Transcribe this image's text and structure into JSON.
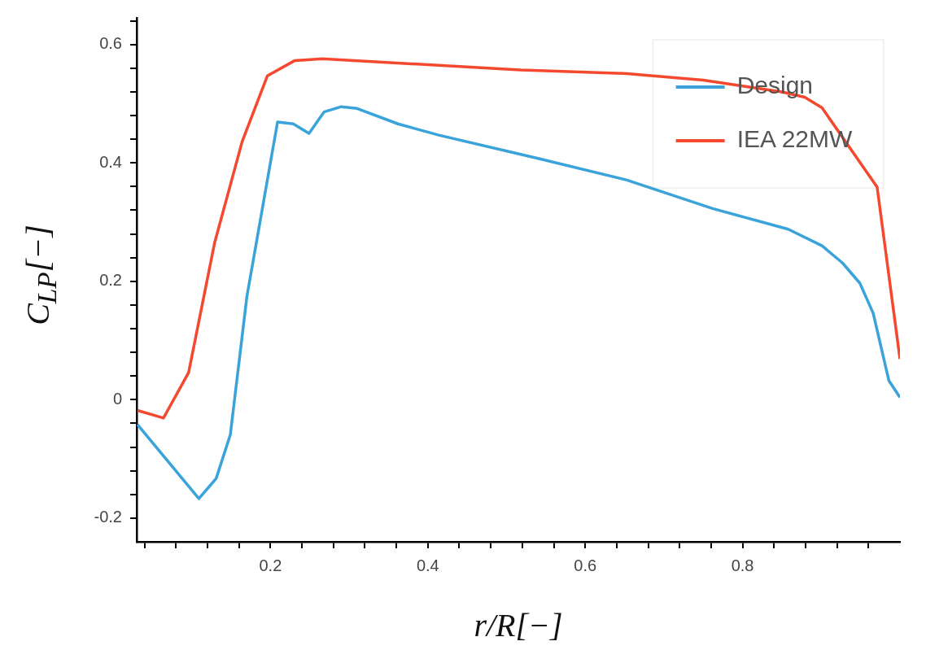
{
  "chart_data": {
    "type": "line",
    "xlabel": "r/R[−]",
    "ylabel": "C$_{LP}$[−]",
    "xlim": [
      0.03,
      1.0
    ],
    "xticks": [
      {
        "value": 0.04,
        "label": null
      },
      {
        "value": 0.08,
        "label": null
      },
      {
        "value": 0.12,
        "label": null
      },
      {
        "value": 0.16,
        "label": null
      },
      0.2,
      {
        "value": 0.24,
        "label": null
      },
      {
        "value": 0.28,
        "label": null
      },
      {
        "value": 0.32,
        "label": null
      },
      {
        "value": 0.36,
        "label": null
      },
      0.4,
      {
        "value": 0.44,
        "label": null
      },
      {
        "value": 0.48,
        "label": null
      },
      {
        "value": 0.52,
        "label": null
      },
      {
        "value": 0.56,
        "label": null
      },
      0.6,
      {
        "value": 0.64,
        "label": null
      },
      {
        "value": 0.68,
        "label": null
      },
      {
        "value": 0.72,
        "label": null
      },
      {
        "value": 0.76,
        "label": null
      },
      0.8,
      {
        "value": 0.84,
        "label": null
      },
      {
        "value": 0.88,
        "label": null
      },
      {
        "value": 0.92,
        "label": null
      },
      {
        "value": 0.96,
        "label": null
      }
    ],
    "ylim": [
      -0.24,
      0.645
    ],
    "yticks": [
      -0.2,
      {
        "value": -0.16,
        "label": null
      },
      {
        "value": -0.12,
        "label": null
      },
      {
        "value": -0.08,
        "label": null
      },
      {
        "value": -0.04,
        "label": null
      },
      0,
      {
        "value": 0.04,
        "label": null
      },
      {
        "value": 0.08,
        "label": null
      },
      {
        "value": 0.12,
        "label": null
      },
      {
        "value": 0.16,
        "label": null
      },
      0.2,
      {
        "value": 0.24,
        "label": null
      },
      {
        "value": 0.28,
        "label": null
      },
      {
        "value": 0.32,
        "label": null
      },
      {
        "value": 0.36,
        "label": null
      },
      0.4,
      {
        "value": 0.44,
        "label": null
      },
      {
        "value": 0.48,
        "label": null
      },
      {
        "value": 0.52,
        "label": null
      },
      {
        "value": 0.56,
        "label": null
      },
      0.6,
      {
        "value": 0.64,
        "label": null
      }
    ],
    "grid": false,
    "legend": "top right",
    "marker": "none",
    "line_style": "solid",
    "series": [
      {
        "name": "Design",
        "color": "#3aa3da",
        "x": [
          0.031,
          0.109,
          0.131,
          0.149,
          0.17,
          0.209,
          0.229,
          0.249,
          0.268,
          0.29,
          0.31,
          0.362,
          0.414,
          0.539,
          0.653,
          0.762,
          0.858,
          0.901,
          0.927,
          0.949,
          0.966,
          0.986,
          1.0
        ],
        "values": [
          -0.042,
          -0.167,
          -0.133,
          -0.059,
          0.174,
          0.469,
          0.466,
          0.45,
          0.486,
          0.495,
          0.492,
          0.466,
          0.447,
          0.408,
          0.371,
          0.323,
          0.288,
          0.26,
          0.231,
          0.197,
          0.146,
          0.032,
          0.004
        ]
      },
      {
        "name": "IEA 22MW",
        "color": "#f4492f",
        "x": [
          0.031,
          0.064,
          0.096,
          0.129,
          0.164,
          0.196,
          0.231,
          0.266,
          0.518,
          0.653,
          0.75,
          0.85,
          0.879,
          0.901,
          0.971,
          1.0
        ],
        "values": [
          -0.018,
          -0.031,
          0.046,
          0.265,
          0.436,
          0.547,
          0.573,
          0.576,
          0.557,
          0.551,
          0.54,
          0.52,
          0.511,
          0.493,
          0.359,
          0.069
        ]
      }
    ]
  }
}
